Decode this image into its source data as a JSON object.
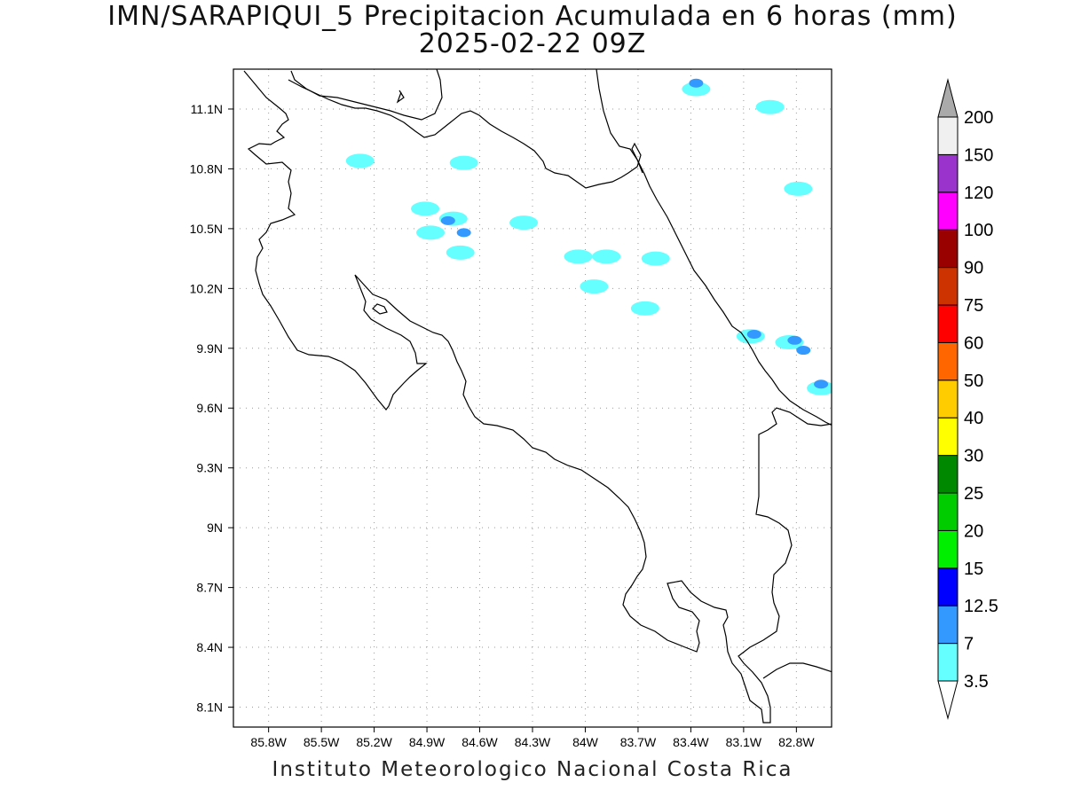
{
  "title": {
    "line1": "IMN/SARAPIQUI_5 Precipitacion Acumulada en 6 horas (mm)",
    "line2": "2025-02-22 09Z"
  },
  "footer": "Instituto Meteorologico Nacional Costa Rica",
  "map": {
    "lon_range": [
      -86.0,
      -82.6
    ],
    "lat_range": [
      8.0,
      11.3
    ],
    "x_ticks": [
      {
        "value": -85.8,
        "label": "85.8W"
      },
      {
        "value": -85.5,
        "label": "85.5W"
      },
      {
        "value": -85.2,
        "label": "85.2W"
      },
      {
        "value": -84.9,
        "label": "84.9W"
      },
      {
        "value": -84.6,
        "label": "84.6W"
      },
      {
        "value": -84.3,
        "label": "84.3W"
      },
      {
        "value": -84.0,
        "label": "84W"
      },
      {
        "value": -83.7,
        "label": "83.7W"
      },
      {
        "value": -83.4,
        "label": "83.4W"
      },
      {
        "value": -83.1,
        "label": "83.1W"
      },
      {
        "value": -82.8,
        "label": "82.8W"
      }
    ],
    "y_ticks": [
      {
        "value": 11.1,
        "label": "11.1N"
      },
      {
        "value": 10.8,
        "label": "10.8N"
      },
      {
        "value": 10.5,
        "label": "10.5N"
      },
      {
        "value": 10.2,
        "label": "10.2N"
      },
      {
        "value": 9.9,
        "label": "9.9N"
      },
      {
        "value": 9.6,
        "label": "9.6N"
      },
      {
        "value": 9.3,
        "label": "9.3N"
      },
      {
        "value": 9.0,
        "label": "9N"
      },
      {
        "value": 8.7,
        "label": "8.7N"
      },
      {
        "value": 8.4,
        "label": "8.4N"
      },
      {
        "value": 8.1,
        "label": "8.1N"
      }
    ],
    "grid": "dotted",
    "precip_cells": [
      {
        "lon": -83.37,
        "lat": 11.2,
        "level": "3.5"
      },
      {
        "lon": -83.37,
        "lat": 11.23,
        "level": "7"
      },
      {
        "lon": -82.95,
        "lat": 11.11,
        "level": "3.5"
      },
      {
        "lon": -84.75,
        "lat": 10.55,
        "level": "3.5"
      },
      {
        "lon": -84.78,
        "lat": 10.54,
        "level": "7"
      },
      {
        "lon": -84.69,
        "lat": 10.48,
        "level": "7"
      },
      {
        "lon": -84.71,
        "lat": 10.38,
        "level": "3.5"
      },
      {
        "lon": -84.88,
        "lat": 10.48,
        "level": "3.5"
      },
      {
        "lon": -84.35,
        "lat": 10.53,
        "level": "3.5"
      },
      {
        "lon": -84.91,
        "lat": 10.6,
        "level": "3.5"
      },
      {
        "lon": -84.04,
        "lat": 10.36,
        "level": "3.5"
      },
      {
        "lon": -83.88,
        "lat": 10.36,
        "level": "3.5"
      },
      {
        "lon": -83.95,
        "lat": 10.21,
        "level": "3.5"
      },
      {
        "lon": -83.6,
        "lat": 10.35,
        "level": "3.5"
      },
      {
        "lon": -83.66,
        "lat": 10.1,
        "level": "3.5"
      },
      {
        "lon": -83.06,
        "lat": 9.96,
        "level": "3.5"
      },
      {
        "lon": -83.04,
        "lat": 9.97,
        "level": "7"
      },
      {
        "lon": -82.84,
        "lat": 9.93,
        "level": "3.5"
      },
      {
        "lon": -82.76,
        "lat": 9.89,
        "level": "7"
      },
      {
        "lon": -82.81,
        "lat": 9.94,
        "level": "7"
      },
      {
        "lon": -82.66,
        "lat": 9.7,
        "level": "3.5"
      },
      {
        "lon": -82.66,
        "lat": 9.72,
        "level": "7"
      },
      {
        "lon": -85.28,
        "lat": 10.84,
        "level": "3.5"
      },
      {
        "lon": -84.69,
        "lat": 10.83,
        "level": "3.5"
      },
      {
        "lon": -82.79,
        "lat": 10.7,
        "level": "3.5"
      }
    ]
  },
  "legend": {
    "levels": [
      {
        "label": "3.5",
        "color": "#66ffff"
      },
      {
        "label": "7",
        "color": "#3399ff"
      },
      {
        "label": "12.5",
        "color": "#0000ff"
      },
      {
        "label": "15",
        "color": "#00ee00"
      },
      {
        "label": "20",
        "color": "#00cc00"
      },
      {
        "label": "25",
        "color": "#008800"
      },
      {
        "label": "30",
        "color": "#ffff00"
      },
      {
        "label": "40",
        "color": "#ffcc00"
      },
      {
        "label": "50",
        "color": "#ff6600"
      },
      {
        "label": "60",
        "color": "#ff0000"
      },
      {
        "label": "75",
        "color": "#cc3300"
      },
      {
        "label": "90",
        "color": "#990000"
      },
      {
        "label": "100",
        "color": "#ff00ff"
      },
      {
        "label": "120",
        "color": "#9933cc"
      },
      {
        "label": "150",
        "color": "#f0f0f0"
      },
      {
        "label": "200",
        "color": "#aaaaaa"
      }
    ]
  }
}
